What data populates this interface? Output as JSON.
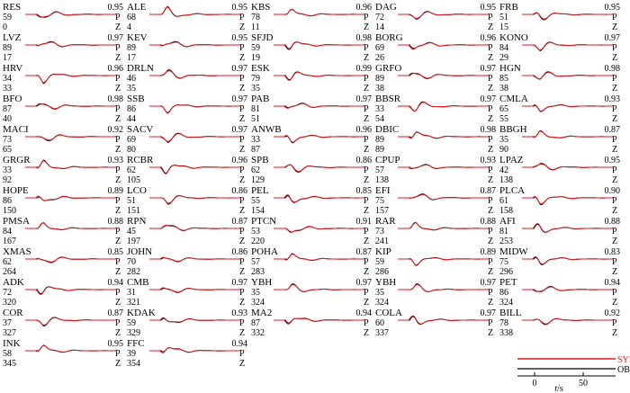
{
  "chart_data": {
    "type": "line",
    "component_labels": [
      "P",
      "Z"
    ],
    "series": [
      {
        "name": "SYN",
        "color": "#e8161b"
      },
      {
        "name": "OBS",
        "color": "#000000"
      }
    ],
    "scale_bar": {
      "ticks": [
        "0",
        "50"
      ],
      "label_var": "t",
      "label_unit": "/s"
    },
    "stations": [
      {
        "name": "RES",
        "distance": 59,
        "azimuth": 0,
        "cc": "0.95"
      },
      {
        "name": "ALE",
        "distance": 68,
        "azimuth": 4,
        "cc": "0.95"
      },
      {
        "name": "KBS",
        "distance": 78,
        "azimuth": 11,
        "cc": "0.96"
      },
      {
        "name": "DAG",
        "distance": 72,
        "azimuth": 14,
        "cc": "0.95"
      },
      {
        "name": "FRB",
        "distance": 51,
        "azimuth": 15,
        "cc": "0.95"
      },
      {
        "name": "LVZ",
        "distance": 89,
        "azimuth": 17,
        "cc": "0.97"
      },
      {
        "name": "KEV",
        "distance": 89,
        "azimuth": 17,
        "cc": "0.95"
      },
      {
        "name": "SFJD",
        "distance": 59,
        "azimuth": 19,
        "cc": "0.98"
      },
      {
        "name": "BORG",
        "distance": 69,
        "azimuth": 26,
        "cc": "0.96"
      },
      {
        "name": "KONO",
        "distance": 84,
        "azimuth": 29,
        "cc": "0.97"
      },
      {
        "name": "HRV",
        "distance": 34,
        "azimuth": 33,
        "cc": "0.96"
      },
      {
        "name": "DRLN",
        "distance": 46,
        "azimuth": 35,
        "cc": "0.97"
      },
      {
        "name": "ESK",
        "distance": 79,
        "azimuth": 35,
        "cc": "0.99"
      },
      {
        "name": "GRFO",
        "distance": 89,
        "azimuth": 38,
        "cc": "0.97"
      },
      {
        "name": "HGN",
        "distance": 85,
        "azimuth": 38,
        "cc": "0.98"
      },
      {
        "name": "BFO",
        "distance": 87,
        "azimuth": 40,
        "cc": "0.98"
      },
      {
        "name": "SSB",
        "distance": 86,
        "azimuth": 44,
        "cc": "0.97"
      },
      {
        "name": "PAB",
        "distance": 81,
        "azimuth": 51,
        "cc": "0.97"
      },
      {
        "name": "BBSR",
        "distance": 33,
        "azimuth": 54,
        "cc": "0.97"
      },
      {
        "name": "CMLA",
        "distance": 65,
        "azimuth": 55,
        "cc": "0.93"
      },
      {
        "name": "MACI",
        "distance": 73,
        "azimuth": 65,
        "cc": "0.92"
      },
      {
        "name": "SACV",
        "distance": 69,
        "azimuth": 80,
        "cc": "0.97"
      },
      {
        "name": "ANWB",
        "distance": 33,
        "azimuth": 87,
        "cc": "0.96"
      },
      {
        "name": "DBIC",
        "distance": 89,
        "azimuth": 89,
        "cc": "0.98"
      },
      {
        "name": "BBGH",
        "distance": 35,
        "azimuth": 90,
        "cc": "0.87"
      },
      {
        "name": "GRGR",
        "distance": 33,
        "azimuth": 92,
        "cc": "0.93"
      },
      {
        "name": "RCBR",
        "distance": 62,
        "azimuth": 105,
        "cc": "0.96"
      },
      {
        "name": "SPB",
        "distance": 62,
        "azimuth": 129,
        "cc": "0.86"
      },
      {
        "name": "CPUP",
        "distance": 57,
        "azimuth": 138,
        "cc": "0.93"
      },
      {
        "name": "LPAZ",
        "distance": 42,
        "azimuth": 138,
        "cc": "0.95"
      },
      {
        "name": "HOPE",
        "distance": 86,
        "azimuth": 150,
        "cc": "0.89"
      },
      {
        "name": "LCO",
        "distance": 51,
        "azimuth": 151,
        "cc": "0.86"
      },
      {
        "name": "PEL",
        "distance": 55,
        "azimuth": 154,
        "cc": "0.85"
      },
      {
        "name": "EFI",
        "distance": 75,
        "azimuth": 157,
        "cc": "0.87"
      },
      {
        "name": "PLCA",
        "distance": 61,
        "azimuth": 158,
        "cc": "0.90"
      },
      {
        "name": "PMSA",
        "distance": 84,
        "azimuth": 167,
        "cc": "0.88"
      },
      {
        "name": "RPN",
        "distance": 45,
        "azimuth": 197,
        "cc": "0.87"
      },
      {
        "name": "PTCN",
        "distance": 53,
        "azimuth": 220,
        "cc": "0.91"
      },
      {
        "name": "RAR",
        "distance": 73,
        "azimuth": 241,
        "cc": "0.88"
      },
      {
        "name": "AFI",
        "distance": 81,
        "azimuth": 253,
        "cc": "0.88"
      },
      {
        "name": "XMAS",
        "distance": 62,
        "azimuth": 264,
        "cc": "0.85"
      },
      {
        "name": "JOHN",
        "distance": 70,
        "azimuth": 282,
        "cc": "0.86"
      },
      {
        "name": "POHA",
        "distance": 57,
        "azimuth": 283,
        "cc": "0.87"
      },
      {
        "name": "KIP",
        "distance": 59,
        "azimuth": 286,
        "cc": "0.89"
      },
      {
        "name": "MIDW",
        "distance": 75,
        "azimuth": 296,
        "cc": "0.83"
      },
      {
        "name": "ADK",
        "distance": 72,
        "azimuth": 320,
        "cc": "0.94"
      },
      {
        "name": "CMB",
        "distance": 31,
        "azimuth": 321,
        "cc": "0.97"
      },
      {
        "name": "YBH",
        "distance": 35,
        "azimuth": 324,
        "cc": "0.97"
      },
      {
        "name": "YBH",
        "distance": 35,
        "azimuth": 324,
        "cc": "0.97"
      },
      {
        "name": "PET",
        "distance": 86,
        "azimuth": 324,
        "cc": "0.94"
      },
      {
        "name": "COR",
        "distance": 37,
        "azimuth": 327,
        "cc": "0.87"
      },
      {
        "name": "KDAK",
        "distance": 59,
        "azimuth": 329,
        "cc": "0.93"
      },
      {
        "name": "MA2",
        "distance": 87,
        "azimuth": 332,
        "cc": "0.94"
      },
      {
        "name": "COLA",
        "distance": 60,
        "azimuth": 337,
        "cc": "0.97"
      },
      {
        "name": "BILL",
        "distance": 78,
        "azimuth": 338,
        "cc": "0.92"
      },
      {
        "name": "INK",
        "distance": 58,
        "azimuth": 345,
        "cc": "0.95"
      },
      {
        "name": "FFC",
        "distance": 39,
        "azimuth": 354,
        "cc": "0.94"
      }
    ]
  }
}
